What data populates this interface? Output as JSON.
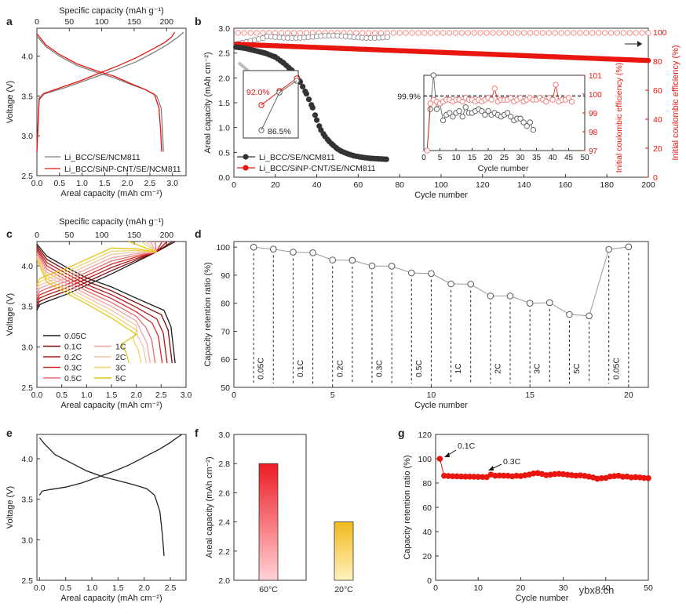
{
  "figure": {
    "watermark": "ybx8.cn"
  },
  "colors": {
    "black": "#1a1a1a",
    "red": "#e8160e",
    "gray": "#7f7f7f",
    "hollow_red": "#f07070"
  },
  "chart_data": [
    {
      "id": "a",
      "panel_label": "a",
      "type": "line",
      "xlabel": "Areal capacity (mAh cm⁻²)",
      "ylabel": "Voltage (V)",
      "top_axis_label": "Specific capacity (mAh g⁻¹)",
      "xlim": [
        0,
        3.3
      ],
      "ylim": [
        2.5,
        4.35
      ],
      "xticks": [
        "0.0",
        "0.5",
        "1.0",
        "1.5",
        "2.0",
        "2.5",
        "3.0"
      ],
      "yticks": [
        "2.5",
        "3.0",
        "3.5",
        "4.0"
      ],
      "top_ticks": [
        "0",
        "50",
        "100",
        "150",
        "200"
      ],
      "legend": [
        "Li_BCC/SE/NCM811",
        "Li_BCC/SiNP-CNT/SE/NCM811"
      ],
      "series": [
        {
          "name": "SE charge",
          "color": "gray",
          "x": [
            0,
            0.05,
            0.15,
            0.3,
            0.6,
            1.0,
            1.4,
            1.8,
            2.2,
            2.6,
            2.9,
            3.1,
            3.25
          ],
          "y": [
            2.8,
            3.45,
            3.52,
            3.55,
            3.6,
            3.68,
            3.76,
            3.84,
            3.93,
            4.05,
            4.15,
            4.23,
            4.3
          ]
        },
        {
          "name": "SE discharge",
          "color": "gray",
          "x": [
            0,
            0.2,
            0.5,
            0.9,
            1.3,
            1.7,
            2.1,
            2.4,
            2.65,
            2.75,
            2.78,
            2.8
          ],
          "y": [
            4.25,
            4.12,
            4.0,
            3.88,
            3.8,
            3.73,
            3.64,
            3.58,
            3.5,
            3.35,
            3.05,
            2.8
          ]
        },
        {
          "name": "SiNP charge",
          "color": "red",
          "x": [
            0,
            0.05,
            0.15,
            0.3,
            0.6,
            1.0,
            1.4,
            1.8,
            2.2,
            2.6,
            2.85,
            2.98,
            3.05
          ],
          "y": [
            2.8,
            3.47,
            3.53,
            3.56,
            3.62,
            3.7,
            3.79,
            3.88,
            3.98,
            4.1,
            4.18,
            4.24,
            4.3
          ]
        },
        {
          "name": "SiNP discharge",
          "color": "red",
          "x": [
            0,
            0.2,
            0.5,
            0.9,
            1.3,
            1.7,
            2.1,
            2.4,
            2.6,
            2.7,
            2.74,
            2.76
          ],
          "y": [
            4.28,
            4.14,
            4.02,
            3.9,
            3.82,
            3.75,
            3.65,
            3.58,
            3.52,
            3.35,
            3.05,
            2.8
          ]
        }
      ]
    },
    {
      "id": "b",
      "panel_label": "b",
      "type": "scatter",
      "xlabel": "Cycle number",
      "ylabel": "Areal capacity (mAh cm⁻²)",
      "y2label": "Initial coulombic efficiency (%)",
      "xlim": [
        0,
        200
      ],
      "ylim": [
        0,
        3.0
      ],
      "y2lim": [
        0,
        100
      ],
      "xticks": [
        "0",
        "20",
        "40",
        "60",
        "80",
        "100",
        "120",
        "140",
        "160",
        "180",
        "200"
      ],
      "yticks": [
        "0.0",
        "0.5",
        "1.0",
        "1.5",
        "2.0",
        "2.5",
        "3.0"
      ],
      "y2ticks": [
        "0",
        "20",
        "40",
        "60",
        "80",
        "100"
      ],
      "legend": [
        "Li_BCC/SE/NCM811",
        "Li_BCC/SiNP-CNT/SE/NCM811"
      ],
      "series": [
        {
          "name": "SE capacity",
          "x": [
            1,
            5,
            10,
            15,
            20,
            24,
            28,
            32,
            35,
            38,
            40,
            42,
            44,
            46,
            48,
            50,
            52,
            55,
            58,
            62,
            66,
            70,
            74
          ],
          "y": [
            2.62,
            2.6,
            2.55,
            2.5,
            2.42,
            2.3,
            2.15,
            1.92,
            1.68,
            1.4,
            1.15,
            0.95,
            0.82,
            0.72,
            0.64,
            0.57,
            0.52,
            0.47,
            0.43,
            0.4,
            0.38,
            0.37,
            0.36
          ]
        },
        {
          "name": "SiNP capacity",
          "x": [
            1,
            20,
            40,
            60,
            80,
            100,
            120,
            140,
            160,
            180,
            200
          ],
          "y": [
            2.68,
            2.66,
            2.62,
            2.58,
            2.55,
            2.52,
            2.49,
            2.45,
            2.42,
            2.38,
            2.35
          ]
        }
      ],
      "inset": {
        "xlabel": "Cycle number",
        "ylabel": "Initial coulombic efficiency (%)",
        "xlim": [
          0,
          50
        ],
        "ylim": [
          97,
          101
        ],
        "xticks": [
          "0",
          "5",
          "10",
          "15",
          "20",
          "25",
          "30",
          "35",
          "40",
          "45",
          "50"
        ],
        "yticks": [
          "97",
          "98",
          "99",
          "100",
          "101"
        ],
        "ref_label": "99.9%",
        "SE": [
          97,
          99.2,
          101.2,
          99.2,
          99.5,
          98.6,
          98.9,
          99,
          98.8,
          99,
          99.1,
          98.8,
          99.3,
          99,
          99,
          99.1,
          99.2,
          99.1,
          98.9,
          99.1,
          98.9,
          99,
          98.9,
          98.8,
          98.9,
          99,
          98.8,
          98.6,
          98.7,
          98.7,
          98.5,
          98.3,
          98.5,
          98.1
        ],
        "SiNP": [
          97,
          99.5,
          99.7,
          99.6,
          99.5,
          99.6,
          99.7,
          99.7,
          99.6,
          99.7,
          99.7,
          99.6,
          99.8,
          99.7,
          99.7,
          99.6,
          99.7,
          99.6,
          99.7,
          99.8,
          99.7,
          100.3,
          99.6,
          99.7,
          99.7,
          99.7,
          99.8,
          99.6,
          99.7,
          99.8,
          99.6,
          99.7,
          99.8,
          99.7,
          99.7,
          99.8,
          99.7,
          99.6,
          99.8,
          99.7,
          100.5,
          99.6,
          99.7,
          99.7,
          99.8,
          99.6
        ]
      },
      "zoom": {
        "labels": [
          "92.0%",
          "86.5%"
        ]
      }
    },
    {
      "id": "c",
      "panel_label": "c",
      "type": "line",
      "xlabel": "Areal capacity (mAh cm⁻²)",
      "ylabel": "Voltage (V)",
      "top_axis_label": "Specific capacity (mAh g⁻¹)",
      "xlim": [
        0,
        3.0
      ],
      "ylim": [
        2.5,
        4.3
      ],
      "xticks": [
        "0.0",
        "0.5",
        "1.0",
        "1.5",
        "2.0",
        "2.5",
        "3.0"
      ],
      "yticks": [
        "2.5",
        "3.0",
        "3.5",
        "4.0"
      ],
      "top_ticks": [
        "0",
        "50",
        "100",
        "150",
        "200"
      ],
      "rates": [
        {
          "label": "0.05C",
          "color": "#1a1a1a",
          "cap": 2.78
        },
        {
          "label": "0.1C",
          "color": "#7a0d0d",
          "cap": 2.72
        },
        {
          "label": "0.2C",
          "color": "#b0181a",
          "cap": 2.62
        },
        {
          "label": "0.3C",
          "color": "#d42a2a",
          "cap": 2.52
        },
        {
          "label": "0.5C",
          "color": "#e86d6d",
          "cap": 2.38
        },
        {
          "label": "1C",
          "color": "#f0a3a3",
          "cap": 2.28
        },
        {
          "label": "2C",
          "color": "#f2c4a8",
          "cap": 2.2
        },
        {
          "label": "3C",
          "color": "#f0d36a",
          "cap": 2.1
        },
        {
          "label": "5C",
          "color": "#e6c418",
          "cap": 1.85
        }
      ]
    },
    {
      "id": "d",
      "panel_label": "d",
      "type": "line",
      "xlabel": "Cycle number",
      "ylabel": "Capacity retention ratio (%)",
      "xlim": [
        0,
        21
      ],
      "ylim": [
        50,
        102
      ],
      "xticks": [
        "0",
        "5",
        "10",
        "15",
        "20"
      ],
      "yticks": [
        "50",
        "60",
        "70",
        "80",
        "90",
        "100"
      ],
      "x": [
        1,
        2,
        3,
        4,
        5,
        6,
        7,
        8,
        9,
        10,
        11,
        12,
        13,
        14,
        15,
        16,
        17,
        18,
        19,
        20
      ],
      "y": [
        100,
        99.3,
        98.2,
        98,
        95.4,
        95.3,
        93.3,
        93.2,
        90.8,
        90.6,
        86.9,
        86.8,
        82.6,
        82.6,
        80,
        80.2,
        76,
        75.5,
        99.2,
        100.1
      ],
      "rate_labels": [
        "0.05C",
        "0.1C",
        "0.2C",
        "0.3C",
        "0.5C",
        "1C",
        "2C",
        "3C",
        "5C",
        "0.05C"
      ]
    },
    {
      "id": "e",
      "panel_label": "e",
      "type": "line",
      "xlabel": "Areal capacity (mAh cm⁻²)",
      "ylabel": "Voltage (V)",
      "xlim": [
        -0.05,
        2.8
      ],
      "ylim": [
        2.5,
        4.3
      ],
      "xticks": [
        "0.0",
        "0.5",
        "1.0",
        "1.5",
        "2.0",
        "2.5"
      ],
      "yticks": [
        "2.5",
        "3.0",
        "3.5",
        "4.0"
      ],
      "series": [
        {
          "name": "charge",
          "x": [
            0,
            0.05,
            0.2,
            0.5,
            0.8,
            1.1,
            1.4,
            1.7,
            2.0,
            2.3,
            2.5,
            2.65,
            2.72
          ],
          "y": [
            3.55,
            3.6,
            3.62,
            3.65,
            3.7,
            3.77,
            3.84,
            3.92,
            4.02,
            4.12,
            4.2,
            4.27,
            4.3
          ]
        },
        {
          "name": "discharge",
          "x": [
            0,
            0.1,
            0.3,
            0.6,
            0.9,
            1.2,
            1.5,
            1.8,
            2.05,
            2.2,
            2.3,
            2.35,
            2.38
          ],
          "y": [
            4.26,
            4.18,
            4.05,
            3.95,
            3.85,
            3.78,
            3.73,
            3.68,
            3.63,
            3.55,
            3.35,
            3.05,
            2.8
          ]
        }
      ]
    },
    {
      "id": "f",
      "panel_label": "f",
      "type": "bar",
      "ylabel": "Areal capacity (mAh cm⁻²)",
      "categories": [
        "60°C",
        "20°C"
      ],
      "values": [
        2.8,
        2.4
      ],
      "ylim": [
        2.0,
        3.0
      ],
      "yticks": [
        "2.0",
        "2.2",
        "2.4",
        "2.6",
        "2.8",
        "3.0"
      ]
    },
    {
      "id": "g",
      "panel_label": "g",
      "type": "scatter",
      "xlabel": "Cycle number",
      "ylabel": "Capacity retention ratio (%)",
      "xlim": [
        0,
        50
      ],
      "ylim": [
        0,
        120
      ],
      "xticks": [
        "0",
        "10",
        "20",
        "30",
        "40",
        "50"
      ],
      "yticks": [
        "0",
        "20",
        "40",
        "60",
        "80",
        "100",
        "120"
      ],
      "annotations": [
        "0.1C",
        "0.3C"
      ],
      "y": [
        100,
        86,
        85.8,
        85.6,
        85.5,
        85.4,
        85.3,
        85.3,
        85.2,
        85.1,
        85,
        84.9,
        87,
        86,
        86.2,
        86.1,
        86,
        85.5,
        86,
        85.8,
        86.4,
        87,
        87.9,
        88.2,
        87.5,
        86.5,
        86.9,
        87.4,
        87.6,
        87.3,
        86.8,
        86.5,
        86.1,
        86.3,
        85.9,
        85.3,
        84.6,
        83.5,
        84,
        84.2,
        85.4,
        85.7,
        86,
        85.2,
        85.4,
        84.6,
        84.9,
        84.6,
        84.2,
        84
      ]
    }
  ]
}
